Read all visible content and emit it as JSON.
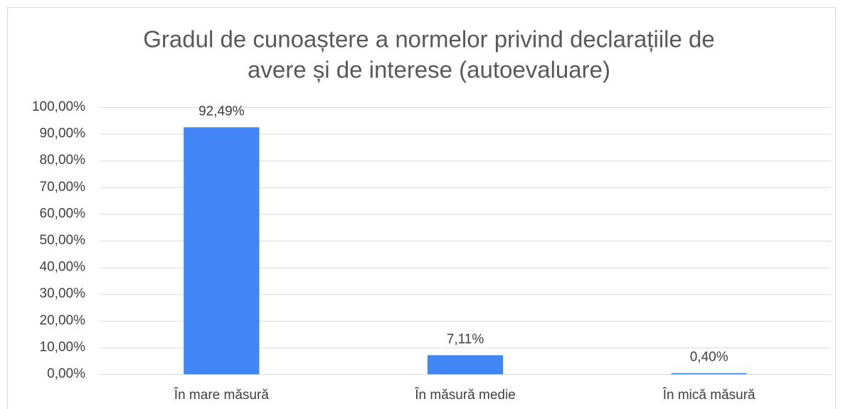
{
  "chart_data": {
    "type": "bar",
    "title": [
      "Gradul de cunoaștere a normelor privind declarațiile de",
      "avere și de interese (autoevaluare)"
    ],
    "categories": [
      "În mare măsură",
      "În măsură medie",
      "În mică măsură"
    ],
    "values": [
      92.49,
      7.11,
      0.4
    ],
    "value_labels": [
      "92,49%",
      "7,11%",
      "0,40%"
    ],
    "color": "#4285f4",
    "ylim": [
      0,
      100
    ],
    "yticks": [
      {
        "value": 0,
        "label": "0,00%"
      },
      {
        "value": 10,
        "label": "10,00%"
      },
      {
        "value": 20,
        "label": "20,00%"
      },
      {
        "value": 30,
        "label": "30,00%"
      },
      {
        "value": 40,
        "label": "40,00%"
      },
      {
        "value": 50,
        "label": "50,00%"
      },
      {
        "value": 60,
        "label": "60,00%"
      },
      {
        "value": 70,
        "label": "70,00%"
      },
      {
        "value": 80,
        "label": "80,00%"
      },
      {
        "value": 90,
        "label": "90,00%"
      },
      {
        "value": 100,
        "label": "100,00%"
      }
    ],
    "grid": true
  }
}
